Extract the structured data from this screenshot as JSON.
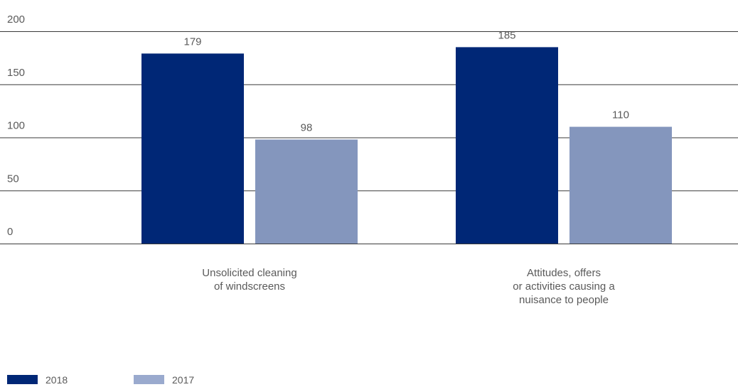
{
  "chart_data": {
    "type": "bar",
    "categories": [
      [
        "Unsolicited cleaning",
        "of windscreens"
      ],
      [
        "Attitudes, offers",
        "or activities causing a",
        "nuisance to people"
      ]
    ],
    "series": [
      {
        "name": "2018",
        "color": "#002776",
        "values": [
          179,
          185
        ]
      },
      {
        "name": "2017",
        "color": "#8496bd",
        "values": [
          98,
          110
        ]
      }
    ],
    "yticks": [
      0,
      50,
      100,
      150,
      200
    ],
    "ylim": [
      0,
      200
    ],
    "grid": true,
    "legend_position": "bottom-left",
    "legend_swatch_colors": [
      "#002776",
      "#9aaace"
    ]
  }
}
